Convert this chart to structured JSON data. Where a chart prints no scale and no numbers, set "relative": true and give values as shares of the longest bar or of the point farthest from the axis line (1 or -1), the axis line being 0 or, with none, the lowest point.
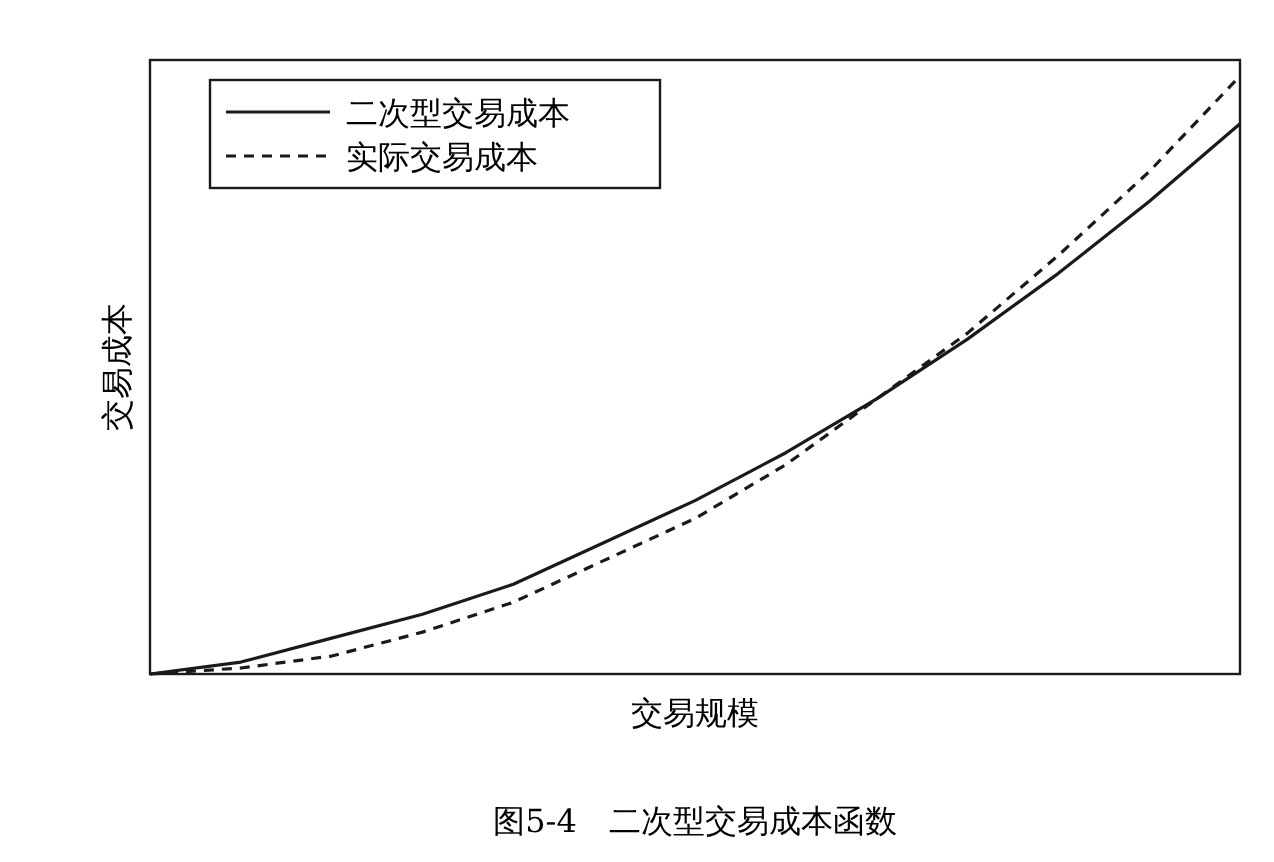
{
  "chart_data": {
    "type": "line",
    "relative": true,
    "xlabel": "交易规模",
    "ylabel": "交易成本",
    "legend": "top left",
    "annotations": [
      "图5-4　二次型交易成本函数"
    ],
    "categories": [
      null,
      null,
      null,
      null,
      null,
      null,
      null,
      null,
      null,
      null,
      null,
      null,
      null
    ],
    "series": [
      {
        "name": "二次型交易成本",
        "color": "#1a1a1a",
        "line_style": "solid",
        "values": [
          0,
          0.02,
          0.06,
          0.1,
          0.15,
          0.22,
          0.29,
          0.37,
          0.46,
          0.56,
          0.67,
          0.79,
          0.92
        ]
      },
      {
        "name": "实际交易成本",
        "color": "#1a1a1a",
        "line_style": "dashed",
        "values": [
          0,
          0.01,
          0.03,
          0.07,
          0.12,
          0.19,
          0.26,
          0.35,
          0.46,
          0.57,
          0.7,
          0.84,
          1
        ]
      }
    ]
  }
}
